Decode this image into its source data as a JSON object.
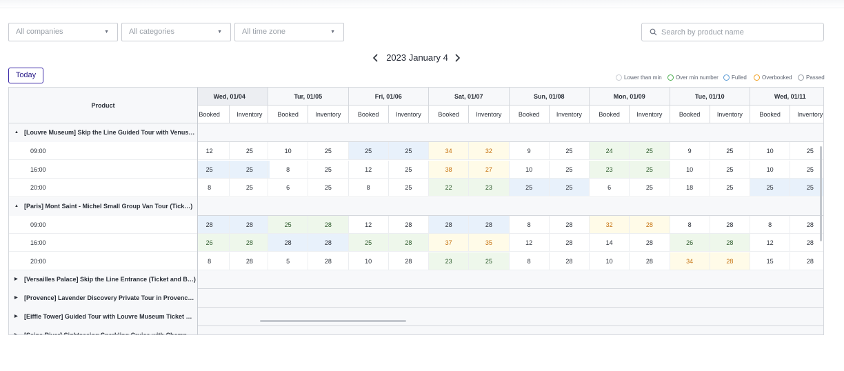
{
  "filters": {
    "company": "All companies",
    "category": "All categories",
    "timezone": "All time zone",
    "search_placeholder": "Search by product name"
  },
  "date_nav": {
    "title": "2023 January 4"
  },
  "today_label": "Today",
  "legend": [
    {
      "label": "Lower than min",
      "color": "#c9ccd2"
    },
    {
      "label": "Over min number",
      "color": "#4caf50"
    },
    {
      "label": "Fulled",
      "color": "#5b9bd5"
    },
    {
      "label": "Overbooked",
      "color": "#f0a020"
    },
    {
      "label": "Passed",
      "color": "#9aa0a8"
    }
  ],
  "table": {
    "product_header": "Product",
    "sub_labels": {
      "booked": "Booked",
      "inventory": "Inventory"
    },
    "days": [
      "Wed, 01/04",
      "Tur, 01/05",
      "Fri, 01/06",
      "Sat, 01/07",
      "Sun, 01/08",
      "Mon, 01/09",
      "Tue, 01/10",
      "Wed, 01/11"
    ],
    "groups": [
      {
        "name": "[Louvre Museum] Skip the Line Guided Tour with Venus…",
        "expanded": true,
        "rows": [
          {
            "time": "09:00",
            "cells": [
              [
                "12",
                "25",
                "n"
              ],
              [
                "10",
                "25",
                "n"
              ],
              [
                "25",
                "25",
                "b"
              ],
              [
                "34",
                "32",
                "y"
              ],
              [
                "9",
                "25",
                "n"
              ],
              [
                "24",
                "25",
                "g"
              ],
              [
                "9",
                "25",
                "n"
              ],
              [
                "10",
                "25",
                "n"
              ]
            ]
          },
          {
            "time": "16:00",
            "cells": [
              [
                "25",
                "25",
                "b"
              ],
              [
                "8",
                "25",
                "n"
              ],
              [
                "12",
                "25",
                "n"
              ],
              [
                "38",
                "27",
                "y"
              ],
              [
                "10",
                "25",
                "n"
              ],
              [
                "23",
                "25",
                "g"
              ],
              [
                "10",
                "25",
                "n"
              ],
              [
                "10",
                "25",
                "n"
              ]
            ]
          },
          {
            "time": "20:00",
            "cells": [
              [
                "8",
                "25",
                "n"
              ],
              [
                "6",
                "25",
                "n"
              ],
              [
                "8",
                "25",
                "n"
              ],
              [
                "22",
                "23",
                "g"
              ],
              [
                "25",
                "25",
                "b"
              ],
              [
                "6",
                "25",
                "n"
              ],
              [
                "18",
                "25",
                "n"
              ],
              [
                "25",
                "25",
                "b"
              ]
            ]
          }
        ]
      },
      {
        "name": "[Paris] Mont Saint - Michel Small Group Van Tour (Tick…)",
        "expanded": true,
        "rows": [
          {
            "time": "09:00",
            "cells": [
              [
                "28",
                "28",
                "b"
              ],
              [
                "25",
                "28",
                "g"
              ],
              [
                "12",
                "28",
                "n"
              ],
              [
                "28",
                "28",
                "b"
              ],
              [
                "8",
                "28",
                "n"
              ],
              [
                "32",
                "28",
                "y"
              ],
              [
                "8",
                "28",
                "n"
              ],
              [
                "8",
                "28",
                "n"
              ]
            ]
          },
          {
            "time": "16:00",
            "cells": [
              [
                "26",
                "28",
                "g"
              ],
              [
                "28",
                "28",
                "b"
              ],
              [
                "25",
                "28",
                "g"
              ],
              [
                "37",
                "35",
                "y"
              ],
              [
                "12",
                "28",
                "n"
              ],
              [
                "14",
                "28",
                "n"
              ],
              [
                "26",
                "28",
                "g"
              ],
              [
                "12",
                "28",
                "n"
              ]
            ]
          },
          {
            "time": "20:00",
            "cells": [
              [
                "8",
                "28",
                "n"
              ],
              [
                "5",
                "28",
                "n"
              ],
              [
                "10",
                "28",
                "n"
              ],
              [
                "23",
                "25",
                "g"
              ],
              [
                "8",
                "28",
                "n"
              ],
              [
                "10",
                "28",
                "n"
              ],
              [
                "34",
                "28",
                "y"
              ],
              [
                "15",
                "28",
                "n"
              ]
            ]
          }
        ]
      },
      {
        "name": "[Versailles Palace] Skip the Line Entrance (Ticket and B…)",
        "expanded": false,
        "rows": []
      },
      {
        "name": "[Provence] Lavender Discovery Private Tour in Provenc…",
        "expanded": false,
        "rows": []
      },
      {
        "name": "[Eiffle Tower] Guided Tour with Louvre Museum Ticket …",
        "expanded": false,
        "rows": []
      },
      {
        "name": "[Seine River] Sightseeing Sparkling Cruise with Champ…",
        "expanded": false,
        "rows": []
      }
    ]
  }
}
